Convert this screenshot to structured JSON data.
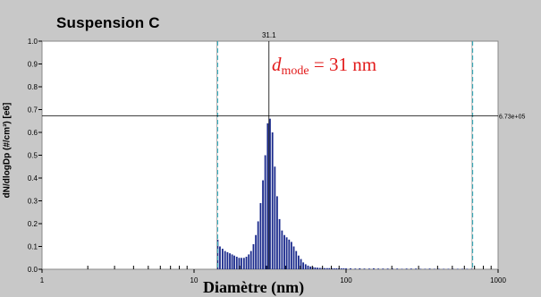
{
  "chart_data": {
    "type": "bar",
    "title": "Suspension  C",
    "ylabel": "dN/dlogDp (#/cm³) [e6]",
    "xlabel": "Diamètre (nm)",
    "xscale": "log",
    "xlim": [
      1,
      1000
    ],
    "ylim": [
      0,
      1.0
    ],
    "x_tick_labels": [
      "1",
      "10",
      "100",
      "1000"
    ],
    "x_tick_values": [
      1,
      10,
      100,
      1000
    ],
    "y_tick_labels": [
      "0.0",
      "0.1",
      "0.2",
      "0.3",
      "0.4",
      "0.5",
      "0.6",
      "0.7",
      "0.8",
      "0.9",
      "1.0"
    ],
    "y_tick_values": [
      0,
      0.1,
      0.2,
      0.3,
      0.4,
      0.5,
      0.6,
      0.7,
      0.8,
      0.9,
      1.0
    ],
    "cursor": {
      "x_label": "31.1",
      "x": 31.1,
      "y_label": "6.73e+05",
      "y": 0.673
    },
    "range_markers": [
      14.3,
      680
    ],
    "annotation": {
      "d": "d",
      "sub": "mode",
      "rest": " = 31 nm"
    },
    "series": [
      {
        "x": [
          14.3,
          14.8,
          15.4,
          16.0,
          16.6,
          17.2,
          17.8,
          18.4,
          19.1,
          19.8,
          20.5,
          21.3,
          22.1,
          22.9,
          23.7,
          24.6,
          25.5,
          26.4,
          27.4,
          28.4,
          29.4,
          30.5,
          31.6,
          32.8,
          34.0,
          35.2,
          36.5,
          37.9,
          39.3,
          40.7,
          42.2,
          43.7,
          45.3,
          47.0,
          48.7,
          50.5,
          52.3,
          54.2,
          56.2,
          58.3,
          60.4,
          62.6,
          64.9,
          67.3,
          69.8,
          72.3,
          75.0,
          77.7,
          80.6,
          83.5,
          86.6,
          89.8,
          93.1,
          96.5,
          100.0,
          107.0,
          115.0,
          123.0,
          132.0,
          142.0,
          152.0,
          163.0,
          175.0,
          188.0,
          202.0,
          217.0,
          233.0,
          250.0,
          268.0,
          288.0,
          309.0,
          331.0,
          355.0,
          381.0,
          409.0,
          439.0,
          471.0,
          505.0,
          542.0,
          582.0,
          625.0,
          670.0
        ],
        "values": [
          0.13,
          0.1,
          0.09,
          0.08,
          0.075,
          0.07,
          0.065,
          0.06,
          0.055,
          0.05,
          0.05,
          0.05,
          0.055,
          0.065,
          0.08,
          0.11,
          0.15,
          0.21,
          0.29,
          0.39,
          0.5,
          0.64,
          0.66,
          0.6,
          0.45,
          0.32,
          0.22,
          0.17,
          0.15,
          0.14,
          0.13,
          0.12,
          0.1,
          0.08,
          0.06,
          0.045,
          0.03,
          0.022,
          0.016,
          0.012,
          0.01,
          0.008,
          0.007,
          0.006,
          0.006,
          0.005,
          0.005,
          0.005,
          0.004,
          0.004,
          0.004,
          0.004,
          0.004,
          0.004,
          0.004,
          0.004,
          0.003,
          0.004,
          0.003,
          0.003,
          0.004,
          0.003,
          0.003,
          0.003,
          0.003,
          0.003,
          0.002,
          0.003,
          0.003,
          0.003,
          0.002,
          0.002,
          0.003,
          0.002,
          0.002,
          0.002,
          0.002,
          0.002,
          0.002,
          0.002,
          0.002,
          0.002
        ]
      }
    ]
  },
  "colors": {
    "background": "#c8c8c8",
    "plot": "#ffffff",
    "bars": "#1a2a8c",
    "markers": "#38b8c8",
    "annotation": "#e21a1a"
  }
}
